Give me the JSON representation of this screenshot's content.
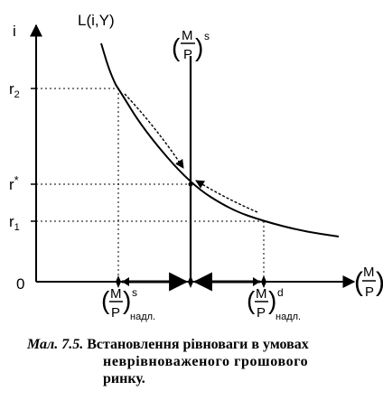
{
  "chart_data": {
    "type": "line",
    "title": "",
    "xlabel": "(M/P)",
    "ylabel": "i",
    "origin_label": "0",
    "curve_label": "L(i,Y)",
    "supply_label": "(M/P)^s",
    "supply_label_parts": {
      "num": "M",
      "den": "P",
      "sup": "s"
    },
    "y_ticks": [
      {
        "label": "r",
        "sub": "2",
        "sup": "",
        "value": 2
      },
      {
        "label": "r",
        "sub": "",
        "sup": "*",
        "value": 1.35
      },
      {
        "label": "r",
        "sub": "1",
        "sup": "",
        "value": 1
      }
    ],
    "x_marks": [
      {
        "num": "M",
        "den": "P",
        "sup": "s",
        "sub": "надл.",
        "value": 1
      },
      {
        "num": "M",
        "den": "P",
        "sup": "d",
        "sub": "надл.",
        "value": 3
      }
    ],
    "money_supply_x": 2,
    "equilibrium": {
      "x": 2,
      "y": 1.35
    },
    "demand_curve": {
      "x": [
        0.0,
        0.4,
        0.8,
        1.0,
        1.4,
        2.0,
        2.6,
        3.0,
        3.6,
        4.2
      ],
      "y": [
        4.2,
        3.05,
        2.3,
        2.0,
        1.7,
        1.35,
        1.12,
        1.0,
        0.87,
        0.82
      ]
    },
    "arrows": [
      {
        "from": 1,
        "to": 2
      },
      {
        "from": 3,
        "to": 2
      }
    ]
  },
  "caption": {
    "figure_label": "Мал. 7.5.",
    "line1": "Встановлення рівноваги в умовах",
    "line2": "неврівноваженого грошового",
    "line3": "ринку."
  }
}
